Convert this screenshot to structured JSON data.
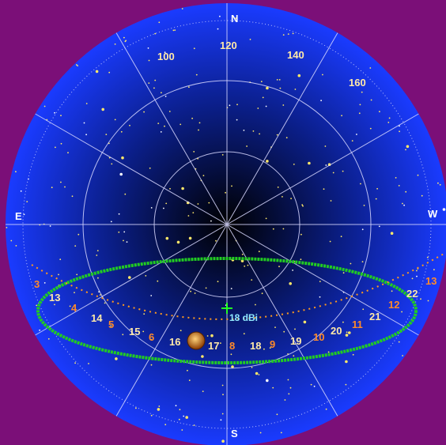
{
  "colors": {
    "background": "#7b0f78",
    "sky_edge": "#1a3bff",
    "sky_center": "#000000",
    "grid": "#d8d8ff",
    "star": "#ffe86a",
    "beam": "#22cc22",
    "track": "#ff9a1f",
    "label_cream": "#ffe9a8",
    "label_orange": "#ff8a2a",
    "gain": "#8fe8ff"
  },
  "compass": {
    "north": "N",
    "south": "S",
    "east": "E",
    "west": "W"
  },
  "azimuth_labels": [
    "100",
    "120",
    "140",
    "160"
  ],
  "antenna": {
    "gain_label": "18 dBi",
    "marker_icon": "crosshair-icon"
  },
  "track_labels": {
    "cream": [
      "13",
      "14",
      "15",
      "16",
      "17",
      "18",
      "19",
      "20",
      "21",
      "22",
      "13"
    ],
    "orange": [
      "3",
      "4",
      "5",
      "6",
      "8",
      "9",
      "10",
      "11",
      "12"
    ]
  },
  "sun_icon": "sun-icon"
}
